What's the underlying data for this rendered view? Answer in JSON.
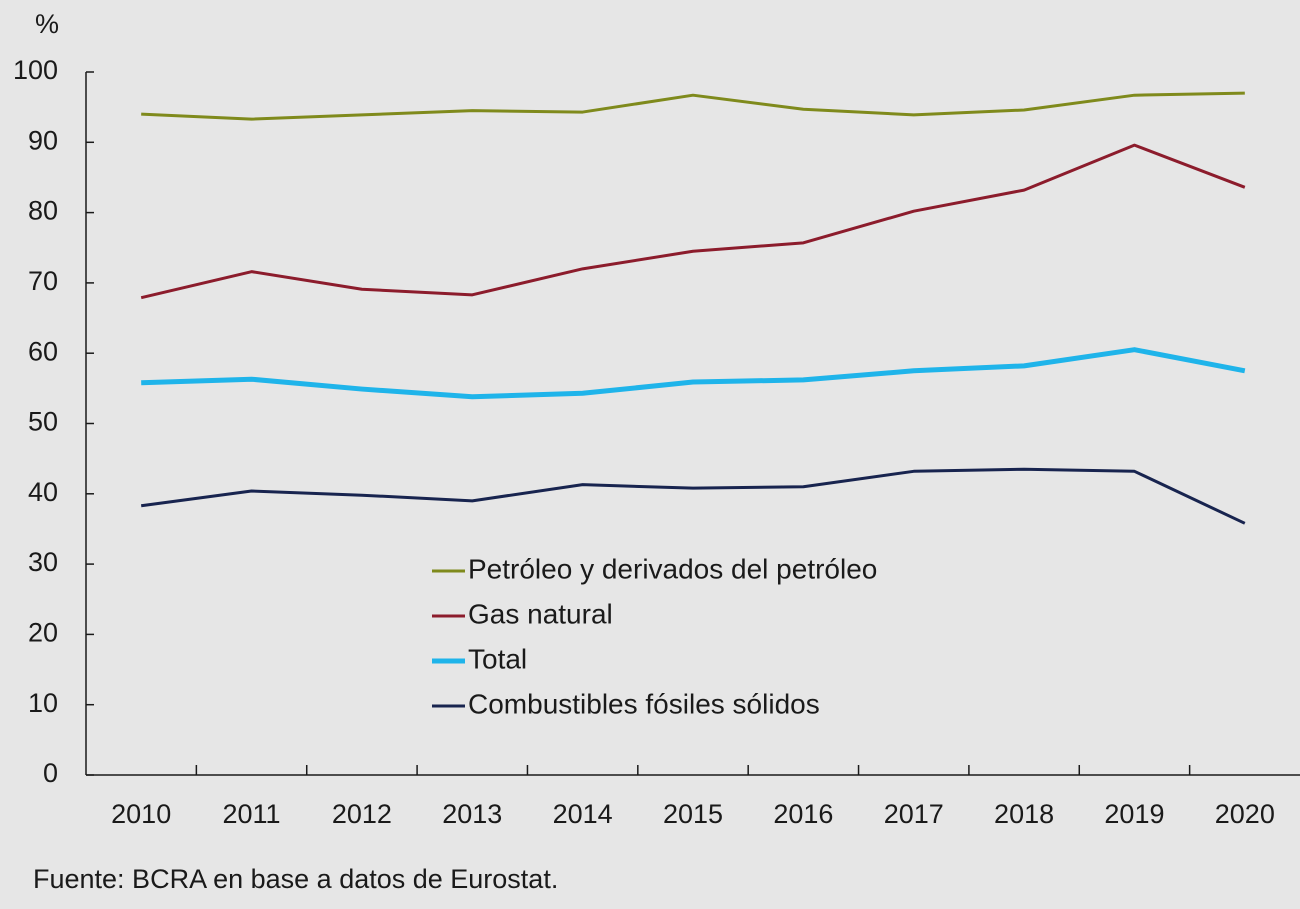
{
  "chart_data": {
    "type": "line",
    "ylabel": "%",
    "source": "Fuente: BCRA en base a datos de Eurostat.",
    "categories": [
      "2010",
      "2011",
      "2012",
      "2013",
      "2014",
      "2015",
      "2016",
      "2017",
      "2018",
      "2019",
      "2020"
    ],
    "series": [
      {
        "name": "Petróleo y derivados del petróleo",
        "color": "#7f8a1c",
        "width": 3,
        "values": [
          94.0,
          93.3,
          93.9,
          94.5,
          94.3,
          96.7,
          94.7,
          93.9,
          94.6,
          96.7,
          97.0
        ]
      },
      {
        "name": "Gas natural",
        "color": "#8c1c2c",
        "width": 3,
        "values": [
          67.9,
          71.6,
          69.1,
          68.3,
          72.0,
          74.5,
          75.7,
          80.2,
          83.2,
          89.6,
          83.6
        ]
      },
      {
        "name": "Total",
        "color": "#1fb4ea",
        "width": 5,
        "values": [
          55.8,
          56.3,
          54.9,
          53.8,
          54.3,
          55.9,
          56.2,
          57.5,
          58.2,
          60.5,
          57.5
        ]
      },
      {
        "name": "Combustibles fósiles sólidos",
        "color": "#18244f",
        "width": 3,
        "values": [
          38.3,
          40.4,
          39.8,
          39.0,
          41.3,
          40.8,
          41.0,
          43.2,
          43.5,
          43.2,
          35.8
        ]
      }
    ],
    "ylim": [
      0,
      100
    ],
    "yticks": [
      0,
      10,
      20,
      30,
      40,
      50,
      60,
      70,
      80,
      90,
      100
    ]
  }
}
